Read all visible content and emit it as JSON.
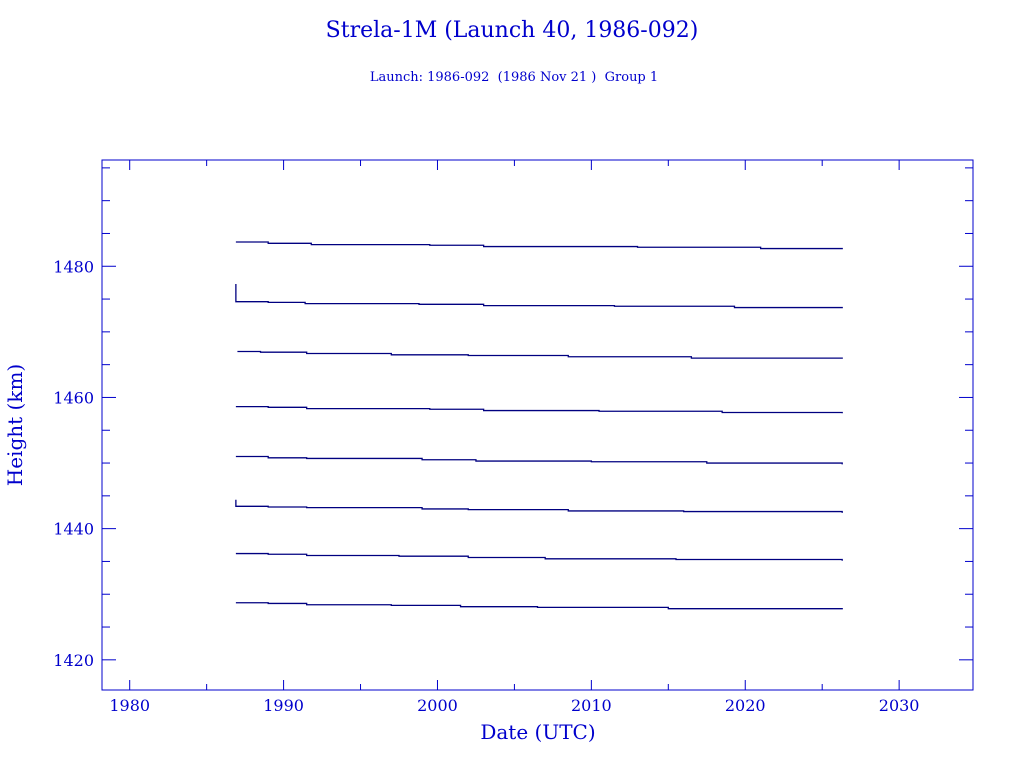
{
  "chart_data": {
    "type": "line",
    "title": "Strela-1M (Launch 40, 1986-092)",
    "subtitle": "Launch: 1986-092  (1986 Nov 21 )  Group 1",
    "xlabel": "Date (UTC)",
    "ylabel": "Height (km)",
    "xlim": [
      1978.2,
      2034.8
    ],
    "ylim": [
      1415.4,
      1496.2
    ],
    "xticks": [
      1980,
      1990,
      2000,
      2010,
      2020,
      2030
    ],
    "yticks": [
      1420,
      1440,
      1460,
      1480
    ],
    "grid": false,
    "color": "#000080",
    "axis_color": "#0000cc",
    "series": [
      {
        "x": [
          1986.9,
          1989.0,
          1991.8,
          1999.5,
          2003.0,
          2013.0,
          2021.0,
          2026.3
        ],
        "y": [
          1483.7,
          1483.5,
          1483.3,
          1483.2,
          1483.0,
          1482.9,
          1482.7,
          1482.6
        ]
      },
      {
        "x": [
          1986.9,
          1986.9,
          1986.9,
          1989.0,
          1991.4,
          1998.8,
          2003.0,
          2011.5,
          2019.3,
          2026.3
        ],
        "y": [
          1477.3,
          1474.8,
          1474.6,
          1474.5,
          1474.3,
          1474.2,
          1474.0,
          1473.9,
          1473.7,
          1473.6
        ]
      },
      {
        "x": [
          1987.0,
          1988.5,
          1991.5,
          1997.0,
          2002.0,
          2008.5,
          2016.5,
          2026.3
        ],
        "y": [
          1467.0,
          1466.9,
          1466.7,
          1466.5,
          1466.4,
          1466.2,
          1466.0,
          1465.9
        ]
      },
      {
        "x": [
          1986.9,
          1989.0,
          1991.5,
          1999.5,
          2003.0,
          2010.5,
          2018.5,
          2026.3
        ],
        "y": [
          1458.6,
          1458.5,
          1458.3,
          1458.2,
          1458.0,
          1457.9,
          1457.7,
          1457.6
        ]
      },
      {
        "x": [
          1986.9,
          1989.0,
          1991.5,
          1999.0,
          2002.5,
          2010.0,
          2017.5,
          2026.3
        ],
        "y": [
          1451.0,
          1450.8,
          1450.7,
          1450.5,
          1450.3,
          1450.2,
          1450.0,
          1449.8
        ]
      },
      {
        "x": [
          1986.9,
          1986.9,
          1986.9,
          1989.0,
          1991.5,
          1999.0,
          2002.0,
          2008.5,
          2016.0,
          2026.3
        ],
        "y": [
          1444.4,
          1443.5,
          1443.4,
          1443.3,
          1443.2,
          1443.0,
          1442.9,
          1442.7,
          1442.6,
          1442.4
        ]
      },
      {
        "x": [
          1986.9,
          1989.0,
          1991.5,
          1997.5,
          2002.0,
          2007.0,
          2015.5,
          2026.3
        ],
        "y": [
          1436.2,
          1436.1,
          1435.9,
          1435.8,
          1435.6,
          1435.4,
          1435.3,
          1435.1
        ]
      },
      {
        "x": [
          1986.9,
          1989.0,
          1991.5,
          1997.0,
          2001.5,
          2006.5,
          2015.0,
          2026.3
        ],
        "y": [
          1428.7,
          1428.6,
          1428.4,
          1428.3,
          1428.1,
          1428.0,
          1427.8,
          1427.7
        ]
      }
    ]
  }
}
